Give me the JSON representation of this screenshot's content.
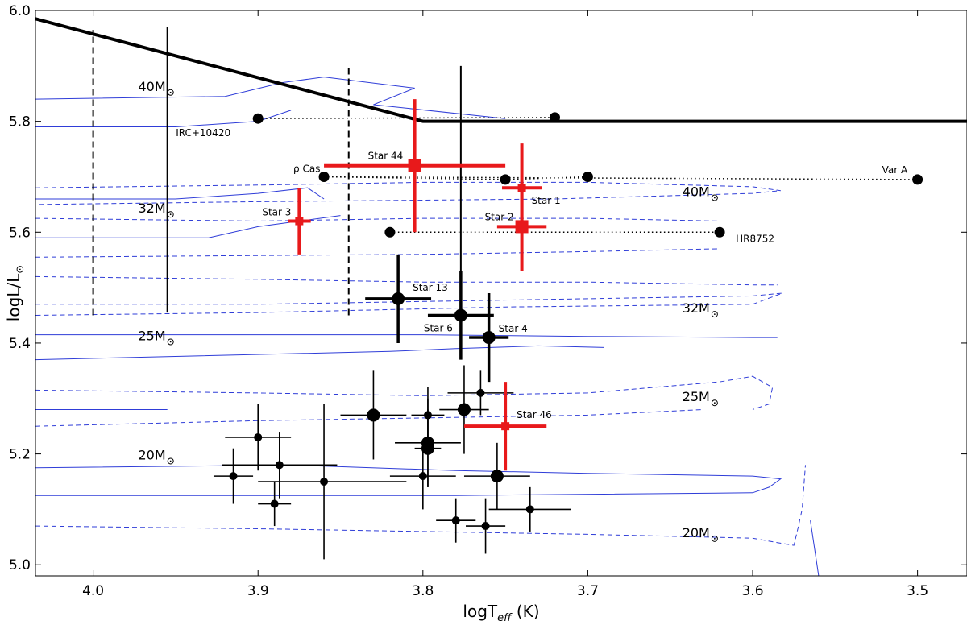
{
  "chart_data": {
    "type": "scatter",
    "xlabel": "logT",
    "xlabel_sub": "eff",
    "xlabel_unit": " (K)",
    "ylabel": "logL/L",
    "ylabel_sym": "⊙",
    "xlim": [
      4.035,
      3.47
    ],
    "ylim": [
      4.98,
      6.0
    ],
    "x_ticks": [
      4.0,
      3.9,
      3.8,
      3.7,
      3.6,
      3.5
    ],
    "x_tick_labels": [
      "4.0",
      "3.9",
      "3.8",
      "3.7",
      "3.6",
      "3.5"
    ],
    "y_ticks": [
      5.0,
      5.2,
      5.4,
      5.6,
      5.8,
      6.0
    ],
    "y_tick_labels": [
      "5.0",
      "5.2",
      "5.4",
      "5.6",
      "5.8",
      "6.0"
    ],
    "colors": {
      "red": "#e8191b",
      "black": "#000000",
      "track": "#2f3dd8"
    },
    "limit_line": [
      [
        4.035,
        5.985
      ],
      [
        3.8,
        5.8
      ],
      [
        3.47,
        5.8
      ]
    ],
    "dashed_lines": [
      {
        "x": 4.0,
        "y": [
          5.45,
          5.965
        ]
      },
      {
        "x": 3.845,
        "y": [
          5.45,
          5.9
        ]
      }
    ],
    "solid_vline": {
      "x": 3.955,
      "y": [
        5.455,
        5.97
      ]
    },
    "tall_errorbar": {
      "x": 3.777,
      "y": [
        5.375,
        5.9
      ]
    },
    "dotted_series": [
      {
        "name": "IRC+10420",
        "label_pos": "below-right",
        "points": [
          [
            3.9,
            5.805
          ],
          [
            3.72,
            5.807
          ]
        ]
      },
      {
        "name": "ρ Cas",
        "label_pos": "above-left",
        "points": [
          [
            3.86,
            5.7
          ],
          [
            3.75,
            5.695
          ],
          [
            3.7,
            5.7
          ]
        ]
      },
      {
        "name": "Var A",
        "label_pos": "above-left",
        "points": [
          [
            3.86,
            5.7
          ],
          [
            3.5,
            5.695
          ]
        ]
      },
      {
        "name": "HR8752",
        "label_pos": "right",
        "points": [
          [
            3.82,
            5.6
          ],
          [
            3.62,
            5.6
          ]
        ]
      }
    ],
    "red_stars": [
      {
        "name": "Star 44",
        "x": 3.805,
        "y": 5.72,
        "xerr": [
          0.055,
          0.055
        ],
        "yerr": [
          0.12,
          0.12
        ],
        "size": "large"
      },
      {
        "name": "Star 1",
        "x": 3.74,
        "y": 5.68,
        "xerr": [
          0.012,
          0.012
        ],
        "yerr": [
          0.08,
          0.08
        ],
        "size": "small"
      },
      {
        "name": "Star 3",
        "x": 3.875,
        "y": 5.62,
        "xerr": [
          0.007,
          0.007
        ],
        "yerr": [
          0.06,
          0.06
        ],
        "size": "small"
      },
      {
        "name": "Star 2",
        "x": 3.74,
        "y": 5.61,
        "xerr": [
          0.015,
          0.015
        ],
        "yerr": [
          0.08,
          0.08
        ],
        "size": "large"
      },
      {
        "name": "Star 46",
        "x": 3.75,
        "y": 5.25,
        "xerr": [
          0.025,
          0.025
        ],
        "yerr": [
          0.08,
          0.08
        ],
        "size": "small"
      }
    ],
    "black_named_stars": [
      {
        "name": "Star 13",
        "x": 3.815,
        "y": 5.48,
        "xerr": [
          0.02,
          0.02
        ],
        "yerr": [
          0.08,
          0.08
        ]
      },
      {
        "name": "Star 6",
        "x": 3.777,
        "y": 5.45,
        "xerr": [
          0.02,
          0.02
        ],
        "yerr": [
          0.08,
          0.08
        ]
      },
      {
        "name": "Star 4",
        "x": 3.76,
        "y": 5.41,
        "xerr": [
          0.012,
          0.012
        ],
        "yerr": [
          0.08,
          0.08
        ]
      }
    ],
    "black_stars": [
      {
        "x": 3.915,
        "y": 5.16,
        "xerr": [
          0.012,
          0.012
        ],
        "yerr": [
          0.05,
          0.05
        ],
        "r": 5
      },
      {
        "x": 3.9,
        "y": 5.23,
        "xerr": [
          0.02,
          0.02
        ],
        "yerr": [
          0.06,
          0.06
        ],
        "r": 5
      },
      {
        "x": 3.89,
        "y": 5.11,
        "xerr": [
          0.01,
          0.01
        ],
        "yerr": [
          0.04,
          0.04
        ],
        "r": 5
      },
      {
        "x": 3.887,
        "y": 5.18,
        "xerr": [
          0.035,
          0.035
        ],
        "yerr": [
          0.06,
          0.06
        ],
        "r": 5
      },
      {
        "x": 3.86,
        "y": 5.15,
        "xerr": [
          0.04,
          0.05
        ],
        "yerr": [
          0.14,
          0.14
        ],
        "r": 5
      },
      {
        "x": 3.83,
        "y": 5.27,
        "xerr": [
          0.02,
          0.02
        ],
        "yerr": [
          0.08,
          0.08
        ],
        "r": 8
      },
      {
        "x": 3.8,
        "y": 5.16,
        "xerr": [
          0.02,
          0.02
        ],
        "yerr": [
          0.06,
          0.06
        ],
        "r": 5
      },
      {
        "x": 3.797,
        "y": 5.27,
        "xerr": [
          0.01,
          0.01
        ],
        "yerr": [
          0.05,
          0.05
        ],
        "r": 5
      },
      {
        "x": 3.797,
        "y": 5.22,
        "xerr": [
          0.02,
          0.02
        ],
        "yerr": [
          0.08,
          0.08
        ],
        "r": 8
      },
      {
        "x": 3.797,
        "y": 5.21,
        "xerr": [
          0.008,
          0.008
        ],
        "yerr": [
          0.07,
          0.07
        ],
        "r": 8
      },
      {
        "x": 3.775,
        "y": 5.28,
        "xerr": [
          0.015,
          0.015
        ],
        "yerr": [
          0.08,
          0.08
        ],
        "r": 8
      },
      {
        "x": 3.765,
        "y": 5.31,
        "xerr": [
          0.02,
          0.02
        ],
        "yerr": [
          0.04,
          0.04
        ],
        "r": 5
      },
      {
        "x": 3.78,
        "y": 5.08,
        "xerr": [
          0.012,
          0.012
        ],
        "yerr": [
          0.04,
          0.04
        ],
        "r": 5
      },
      {
        "x": 3.762,
        "y": 5.07,
        "xerr": [
          0.012,
          0.012
        ],
        "yerr": [
          0.05,
          0.05
        ],
        "r": 5
      },
      {
        "x": 3.755,
        "y": 5.16,
        "xerr": [
          0.02,
          0.02
        ],
        "yerr": [
          0.06,
          0.06
        ],
        "r": 8
      },
      {
        "x": 3.735,
        "y": 5.1,
        "xerr": [
          0.025,
          0.025
        ],
        "yerr": [
          0.04,
          0.04
        ],
        "r": 5
      }
    ],
    "mass_labels": [
      {
        "text": "40M",
        "x": 3.955,
        "y": 5.855
      },
      {
        "text": "32M",
        "x": 3.955,
        "y": 5.635
      },
      {
        "text": "25M",
        "x": 3.955,
        "y": 5.405
      },
      {
        "text": "20M",
        "x": 3.955,
        "y": 5.19
      },
      {
        "text": "40M",
        "x": 3.625,
        "y": 5.665
      },
      {
        "text": "32M",
        "x": 3.625,
        "y": 5.455
      },
      {
        "text": "25M",
        "x": 3.625,
        "y": 5.295
      },
      {
        "text": "20M",
        "x": 3.625,
        "y": 5.05
      }
    ],
    "solid_tracks": [
      [
        [
          4.035,
          5.84
        ],
        [
          3.92,
          5.845
        ],
        [
          3.885,
          5.87
        ],
        [
          3.86,
          5.88
        ],
        [
          3.805,
          5.86
        ],
        [
          3.83,
          5.83
        ],
        [
          3.75,
          5.805
        ]
      ],
      [
        [
          4.035,
          5.79
        ],
        [
          3.95,
          5.79
        ],
        [
          3.9,
          5.8
        ],
        [
          3.88,
          5.82
        ]
      ],
      [
        [
          4.035,
          5.66
        ],
        [
          3.95,
          5.66
        ],
        [
          3.9,
          5.67
        ],
        [
          3.87,
          5.68
        ],
        [
          3.86,
          5.66
        ]
      ],
      [
        [
          4.035,
          5.59
        ],
        [
          3.93,
          5.59
        ],
        [
          3.9,
          5.61
        ],
        [
          3.875,
          5.62
        ],
        [
          3.85,
          5.63
        ]
      ],
      [
        [
          4.035,
          5.415
        ],
        [
          3.8,
          5.415
        ],
        [
          3.7,
          5.412
        ],
        [
          3.6,
          5.41
        ],
        [
          3.585,
          5.41
        ]
      ],
      [
        [
          4.035,
          5.37
        ],
        [
          3.82,
          5.385
        ],
        [
          3.78,
          5.39
        ],
        [
          3.73,
          5.395
        ],
        [
          3.69,
          5.392
        ]
      ],
      [
        [
          4.035,
          5.28
        ],
        [
          3.955,
          5.28
        ]
      ],
      [
        [
          4.035,
          5.175
        ],
        [
          3.88,
          5.18
        ],
        [
          3.78,
          5.17
        ],
        [
          3.7,
          5.165
        ],
        [
          3.6,
          5.16
        ],
        [
          3.583,
          5.155
        ],
        [
          3.59,
          5.14
        ],
        [
          3.6,
          5.13
        ],
        [
          3.78,
          5.125
        ],
        [
          4.035,
          5.125
        ]
      ],
      [
        [
          3.565,
          5.08
        ],
        [
          3.562,
          5.02
        ],
        [
          3.56,
          4.98
        ]
      ]
    ],
    "dashed_tracks": [
      [
        [
          4.035,
          5.68
        ],
        [
          3.9,
          5.685
        ],
        [
          3.8,
          5.69
        ],
        [
          3.7,
          5.69
        ],
        [
          3.6,
          5.682
        ],
        [
          3.583,
          5.675
        ],
        [
          3.6,
          5.67
        ],
        [
          3.72,
          5.66
        ],
        [
          3.9,
          5.655
        ],
        [
          4.035,
          5.65
        ]
      ],
      [
        [
          4.035,
          5.625
        ],
        [
          3.9,
          5.62
        ],
        [
          3.8,
          5.625
        ],
        [
          3.7,
          5.625
        ],
        [
          3.62,
          5.62
        ]
      ],
      [
        [
          4.035,
          5.555
        ],
        [
          3.9,
          5.558
        ],
        [
          3.8,
          5.56
        ],
        [
          3.7,
          5.565
        ],
        [
          3.62,
          5.57
        ]
      ],
      [
        [
          4.035,
          5.52
        ],
        [
          3.9,
          5.515
        ],
        [
          3.8,
          5.51
        ],
        [
          3.7,
          5.51
        ],
        [
          3.6,
          5.505
        ],
        [
          3.585,
          5.505
        ]
      ],
      [
        [
          4.035,
          5.47
        ],
        [
          3.9,
          5.47
        ],
        [
          3.8,
          5.475
        ],
        [
          3.7,
          5.48
        ],
        [
          3.6,
          5.485
        ],
        [
          3.582,
          5.49
        ],
        [
          3.6,
          5.47
        ],
        [
          3.75,
          5.465
        ],
        [
          3.9,
          5.455
        ],
        [
          4.035,
          5.45
        ]
      ],
      [
        [
          4.035,
          5.315
        ],
        [
          3.9,
          5.31
        ],
        [
          3.8,
          5.305
        ],
        [
          3.7,
          5.31
        ],
        [
          3.62,
          5.33
        ],
        [
          3.6,
          5.34
        ],
        [
          3.588,
          5.32
        ],
        [
          3.59,
          5.29
        ],
        [
          3.6,
          5.28
        ]
      ],
      [
        [
          4.035,
          5.25
        ],
        [
          3.9,
          5.26
        ],
        [
          3.8,
          5.265
        ],
        [
          3.7,
          5.27
        ],
        [
          3.63,
          5.28
        ]
      ],
      [
        [
          4.035,
          5.07
        ],
        [
          3.9,
          5.065
        ],
        [
          3.8,
          5.06
        ],
        [
          3.7,
          5.055
        ],
        [
          3.6,
          5.048
        ],
        [
          3.585,
          5.04
        ],
        [
          3.575,
          5.035
        ],
        [
          3.573,
          5.06
        ],
        [
          3.57,
          5.1
        ],
        [
          3.568,
          5.18
        ]
      ]
    ]
  }
}
